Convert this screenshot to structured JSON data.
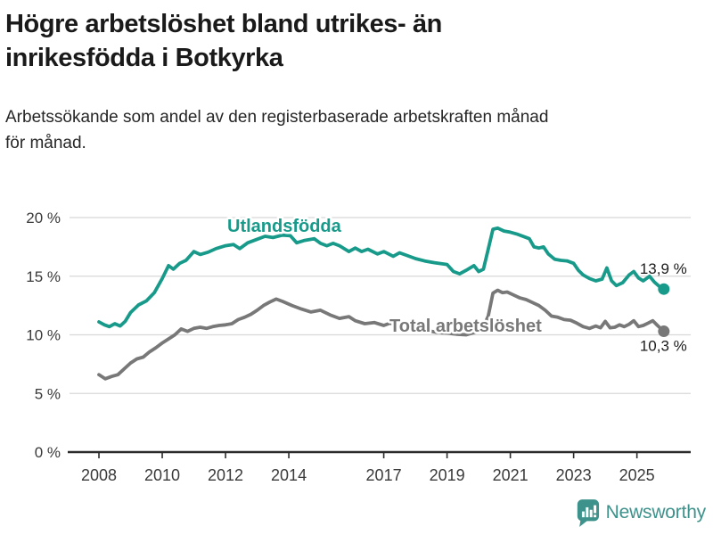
{
  "header": {
    "title_lines": [
      "Högre arbetslöshet bland utrikes- än",
      "inrikesfödda i Botkyrka"
    ],
    "subtitle_lines": [
      "Arbetssökande som andel av den registerbaserade arbetskraften månad",
      "för månad."
    ]
  },
  "footer": {
    "brand": "Newsworthy",
    "logo_icon": "bar-chart-speech-bubble-icon"
  },
  "colors": {
    "teal": "#179a8a",
    "gray": "#787878",
    "grid": "#d8d8d8",
    "axis": "#2b2b2b",
    "tick_text": "#3a3a3a",
    "end_label_text": "#1c1c1c",
    "logo_teal": "#3d928b"
  },
  "chart_data": {
    "type": "line",
    "title": "Högre arbetslöshet bland utrikes- än inrikesfödda i Botkyrka",
    "subtitle": "Arbetssökande som andel av den registerbaserade arbetskraften månad för månad.",
    "xlabel": "",
    "ylabel": "",
    "grid": "horizontal",
    "legend_position": "inline-labels",
    "xlim": [
      2007.07,
      2026.7
    ],
    "ylim": [
      0,
      20
    ],
    "x_ticks": [
      2008,
      2010,
      2012,
      2014,
      2017,
      2019,
      2021,
      2023,
      2025
    ],
    "x_tick_labels": [
      "2008",
      "2010",
      "2012",
      "2014",
      "2017",
      "2019",
      "2021",
      "2023",
      "2025"
    ],
    "y_ticks": [
      0,
      5,
      10,
      15,
      20
    ],
    "y_tick_labels": [
      "0 %",
      "5 %",
      "10 %",
      "15 %",
      "20 %"
    ],
    "series": [
      {
        "name": "Total arbetslöshet",
        "color": "#787878",
        "end_label": "10,3 %",
        "points": [
          [
            2008.0,
            6.6
          ],
          [
            2008.2,
            6.25
          ],
          [
            2008.4,
            6.45
          ],
          [
            2008.6,
            6.6
          ],
          [
            2008.8,
            7.1
          ],
          [
            2009.0,
            7.6
          ],
          [
            2009.2,
            7.95
          ],
          [
            2009.4,
            8.1
          ],
          [
            2009.6,
            8.55
          ],
          [
            2009.8,
            8.9
          ],
          [
            2010.0,
            9.3
          ],
          [
            2010.2,
            9.65
          ],
          [
            2010.4,
            10.0
          ],
          [
            2010.6,
            10.5
          ],
          [
            2010.8,
            10.3
          ],
          [
            2011.0,
            10.55
          ],
          [
            2011.2,
            10.65
          ],
          [
            2011.4,
            10.55
          ],
          [
            2011.6,
            10.7
          ],
          [
            2011.8,
            10.8
          ],
          [
            2012.0,
            10.85
          ],
          [
            2012.2,
            10.95
          ],
          [
            2012.4,
            11.3
          ],
          [
            2012.6,
            11.5
          ],
          [
            2012.8,
            11.75
          ],
          [
            2013.0,
            12.1
          ],
          [
            2013.2,
            12.5
          ],
          [
            2013.4,
            12.8
          ],
          [
            2013.6,
            13.05
          ],
          [
            2013.8,
            12.85
          ],
          [
            2014.1,
            12.5
          ],
          [
            2014.4,
            12.2
          ],
          [
            2014.7,
            11.95
          ],
          [
            2015.0,
            12.1
          ],
          [
            2015.3,
            11.7
          ],
          [
            2015.6,
            11.4
          ],
          [
            2015.9,
            11.55
          ],
          [
            2016.1,
            11.2
          ],
          [
            2016.4,
            10.95
          ],
          [
            2016.7,
            11.05
          ],
          [
            2017.0,
            10.8
          ],
          [
            2017.2,
            11.0
          ],
          [
            2017.5,
            10.8
          ],
          [
            2017.8,
            10.65
          ],
          [
            2018.1,
            10.5
          ],
          [
            2018.4,
            10.35
          ],
          [
            2018.7,
            10.2
          ],
          [
            2019.0,
            10.15
          ],
          [
            2019.3,
            10.05
          ],
          [
            2019.6,
            10.0
          ],
          [
            2019.85,
            10.2
          ],
          [
            2020.1,
            10.4
          ],
          [
            2020.3,
            11.6
          ],
          [
            2020.45,
            13.55
          ],
          [
            2020.6,
            13.8
          ],
          [
            2020.75,
            13.6
          ],
          [
            2020.9,
            13.65
          ],
          [
            2021.1,
            13.4
          ],
          [
            2021.3,
            13.15
          ],
          [
            2021.5,
            13.0
          ],
          [
            2021.7,
            12.75
          ],
          [
            2021.9,
            12.5
          ],
          [
            2022.1,
            12.1
          ],
          [
            2022.3,
            11.6
          ],
          [
            2022.5,
            11.5
          ],
          [
            2022.7,
            11.3
          ],
          [
            2022.9,
            11.25
          ],
          [
            2023.1,
            11.0
          ],
          [
            2023.3,
            10.7
          ],
          [
            2023.5,
            10.55
          ],
          [
            2023.7,
            10.75
          ],
          [
            2023.85,
            10.6
          ],
          [
            2024.0,
            11.15
          ],
          [
            2024.15,
            10.6
          ],
          [
            2024.3,
            10.65
          ],
          [
            2024.45,
            10.85
          ],
          [
            2024.6,
            10.7
          ],
          [
            2024.75,
            10.9
          ],
          [
            2024.9,
            11.2
          ],
          [
            2025.05,
            10.7
          ],
          [
            2025.2,
            10.8
          ],
          [
            2025.35,
            11.0
          ],
          [
            2025.5,
            11.2
          ],
          [
            2025.65,
            10.8
          ],
          [
            2025.85,
            10.3
          ]
        ]
      },
      {
        "name": "Utlandsfödda",
        "color": "#179a8a",
        "end_label": "13,9 %",
        "points": [
          [
            2008.0,
            11.1
          ],
          [
            2008.17,
            10.85
          ],
          [
            2008.33,
            10.7
          ],
          [
            2008.5,
            10.95
          ],
          [
            2008.67,
            10.75
          ],
          [
            2008.83,
            11.15
          ],
          [
            2009.0,
            11.9
          ],
          [
            2009.25,
            12.55
          ],
          [
            2009.5,
            12.9
          ],
          [
            2009.75,
            13.6
          ],
          [
            2010.0,
            14.8
          ],
          [
            2010.2,
            15.9
          ],
          [
            2010.35,
            15.6
          ],
          [
            2010.55,
            16.1
          ],
          [
            2010.75,
            16.35
          ],
          [
            2011.0,
            17.1
          ],
          [
            2011.2,
            16.85
          ],
          [
            2011.45,
            17.05
          ],
          [
            2011.7,
            17.35
          ],
          [
            2012.0,
            17.6
          ],
          [
            2012.25,
            17.7
          ],
          [
            2012.45,
            17.35
          ],
          [
            2012.7,
            17.85
          ],
          [
            2013.0,
            18.15
          ],
          [
            2013.25,
            18.4
          ],
          [
            2013.5,
            18.3
          ],
          [
            2013.8,
            18.5
          ],
          [
            2014.05,
            18.45
          ],
          [
            2014.25,
            17.85
          ],
          [
            2014.5,
            18.05
          ],
          [
            2014.8,
            18.2
          ],
          [
            2015.0,
            17.8
          ],
          [
            2015.2,
            17.6
          ],
          [
            2015.4,
            17.8
          ],
          [
            2015.6,
            17.6
          ],
          [
            2015.9,
            17.1
          ],
          [
            2016.1,
            17.4
          ],
          [
            2016.3,
            17.1
          ],
          [
            2016.5,
            17.3
          ],
          [
            2016.8,
            16.9
          ],
          [
            2017.0,
            17.1
          ],
          [
            2017.3,
            16.7
          ],
          [
            2017.5,
            17.0
          ],
          [
            2017.8,
            16.7
          ],
          [
            2018.0,
            16.5
          ],
          [
            2018.3,
            16.3
          ],
          [
            2018.6,
            16.15
          ],
          [
            2019.0,
            16.0
          ],
          [
            2019.2,
            15.4
          ],
          [
            2019.4,
            15.2
          ],
          [
            2019.6,
            15.5
          ],
          [
            2019.85,
            15.9
          ],
          [
            2020.0,
            15.4
          ],
          [
            2020.15,
            15.6
          ],
          [
            2020.3,
            17.3
          ],
          [
            2020.45,
            19.0
          ],
          [
            2020.6,
            19.1
          ],
          [
            2020.8,
            18.85
          ],
          [
            2021.0,
            18.75
          ],
          [
            2021.2,
            18.6
          ],
          [
            2021.45,
            18.35
          ],
          [
            2021.6,
            18.2
          ],
          [
            2021.75,
            17.5
          ],
          [
            2021.9,
            17.4
          ],
          [
            2022.05,
            17.5
          ],
          [
            2022.2,
            16.9
          ],
          [
            2022.4,
            16.45
          ],
          [
            2022.6,
            16.35
          ],
          [
            2022.8,
            16.3
          ],
          [
            2023.0,
            16.1
          ],
          [
            2023.15,
            15.5
          ],
          [
            2023.3,
            15.1
          ],
          [
            2023.5,
            14.8
          ],
          [
            2023.7,
            14.6
          ],
          [
            2023.9,
            14.75
          ],
          [
            2024.05,
            15.7
          ],
          [
            2024.2,
            14.6
          ],
          [
            2024.35,
            14.2
          ],
          [
            2024.55,
            14.45
          ],
          [
            2024.75,
            15.1
          ],
          [
            2024.9,
            15.4
          ],
          [
            2025.05,
            14.85
          ],
          [
            2025.2,
            14.6
          ],
          [
            2025.4,
            15.0
          ],
          [
            2025.55,
            14.5
          ],
          [
            2025.7,
            14.15
          ],
          [
            2025.85,
            13.9
          ]
        ]
      }
    ]
  }
}
